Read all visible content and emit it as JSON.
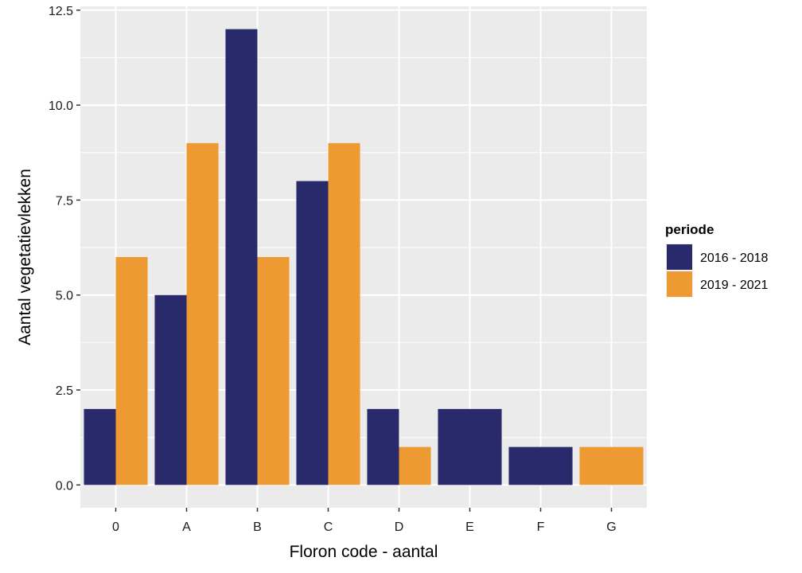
{
  "chart_data": {
    "type": "bar",
    "categories": [
      "0",
      "A",
      "B",
      "C",
      "D",
      "E",
      "F",
      "G"
    ],
    "series": [
      {
        "name": "2016 - 2018",
        "color": "#282A6C",
        "values": [
          2,
          5,
          12,
          8,
          2,
          2,
          1,
          null
        ]
      },
      {
        "name": "2019 - 2021",
        "color": "#EE9A33",
        "values": [
          6,
          9,
          6,
          9,
          1,
          null,
          null,
          1
        ]
      }
    ],
    "xlabel": "Floron code - aantal",
    "ylabel": "Aantal vegetatievlekken",
    "ylim": [
      -0.6,
      12.6
    ],
    "yticks": [
      0,
      2.5,
      5,
      7.5,
      10,
      12.5
    ],
    "ytick_labels": [
      "0.0",
      "2.5",
      "5.0",
      "7.5",
      "10.0",
      "12.5"
    ],
    "legend": {
      "title": "periode",
      "position": "right"
    },
    "grid": true,
    "panel_background": "#EBEBEB"
  }
}
